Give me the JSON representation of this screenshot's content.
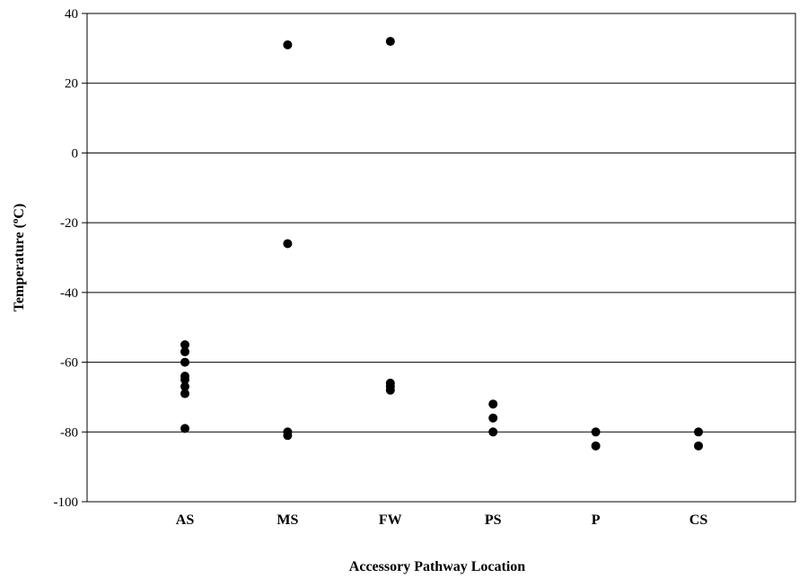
{
  "chart_data": {
    "type": "scatter",
    "xlabel": "Accessory Pathway Location",
    "ylabel_text": "Temperature (",
    "ylabel_sup": "o",
    "ylabel_unit": "C)",
    "ylim": [
      -100,
      40
    ],
    "yticks": [
      40,
      20,
      0,
      -20,
      -40,
      -60,
      -80,
      -100
    ],
    "grid": "horizontal",
    "categories": [
      "AS",
      "MS",
      "FW",
      "PS",
      "P",
      "CS"
    ],
    "series": [
      {
        "points": [
          {
            "category": "AS",
            "y": -55
          },
          {
            "category": "AS",
            "y": -57
          },
          {
            "category": "AS",
            "y": -60
          },
          {
            "category": "AS",
            "y": -64
          },
          {
            "category": "AS",
            "y": -65
          },
          {
            "category": "AS",
            "y": -67
          },
          {
            "category": "AS",
            "y": -69
          },
          {
            "category": "AS",
            "y": -79
          },
          {
            "category": "MS",
            "y": 31
          },
          {
            "category": "MS",
            "y": -26
          },
          {
            "category": "MS",
            "y": -80
          },
          {
            "category": "MS",
            "y": -81
          },
          {
            "category": "FW",
            "y": 32
          },
          {
            "category": "FW",
            "y": -66
          },
          {
            "category": "FW",
            "y": -67
          },
          {
            "category": "FW",
            "y": -68
          },
          {
            "category": "PS",
            "y": -72
          },
          {
            "category": "PS",
            "y": -76
          },
          {
            "category": "PS",
            "y": -80
          },
          {
            "category": "P",
            "y": -80
          },
          {
            "category": "P",
            "y": -84
          },
          {
            "category": "CS",
            "y": -80
          },
          {
            "category": "CS",
            "y": -84
          }
        ]
      }
    ]
  }
}
